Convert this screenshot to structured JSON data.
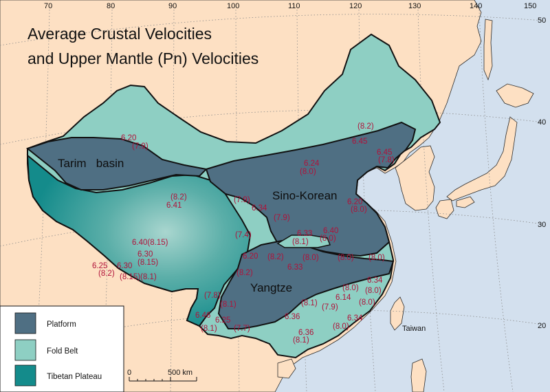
{
  "title": {
    "line1": "Average Crustal Velocities",
    "line2": "and Upper Mantle (Pn) Velocities"
  },
  "longitude_ticks": [
    "70",
    "80",
    "90",
    "100",
    "110",
    "120",
    "130",
    "140",
    "150"
  ],
  "latitude_ticks": [
    "50",
    "40",
    "30",
    "20"
  ],
  "regions": {
    "tarim": "Tarim   basin",
    "sino_korean": "Sino-Korean",
    "yangtze": "Yangtze"
  },
  "place_labels": {
    "taiwan": "Taiwan"
  },
  "legend": {
    "items": [
      {
        "label": "Platform",
        "color": "#4f6f83"
      },
      {
        "label": "Fold Belt",
        "color": "#8ecfc3"
      },
      {
        "label": "Tibetan Plateau",
        "color": "#148b8b"
      }
    ],
    "scale": {
      "start": "0",
      "end": "500 km"
    }
  },
  "colors": {
    "ocean": "#d3e0ee",
    "land": "#fde0c3",
    "platform": "#4f6f83",
    "fold_belt": "#8ecfc3",
    "tibetan_plateau": "#148b8b",
    "value_text": "#b0123a"
  },
  "velocity_labels": [
    "6.20",
    "(7.9)",
    "(8.2)",
    "6.45",
    "6.45",
    "(7.8)",
    "6.24",
    "(8.0)",
    "(8.2)",
    "6.41",
    "(7.9)",
    "6.34",
    "(7.9)",
    "6.20",
    "(8.0)",
    "6.33",
    "(8.1)",
    "6.40",
    "(8.0)",
    "(7.4)",
    "6.40(8.15)",
    "6.30",
    "(8.15)",
    "6.25",
    "6.30",
    "(8.2)",
    "(8.15)(8.1)",
    "6.20",
    "(8.2)",
    "6.33",
    "(8.2)",
    "(8.0)",
    "(8.0)",
    "(8.0)",
    "(8.0)",
    "6.34",
    "(8.0)",
    "(7.8)",
    "6.14",
    "(8.1)",
    "(7.9)",
    "(8.0)",
    "(8.1)",
    "6.46",
    "6.25",
    "6.36",
    "6.34",
    "(8.1)",
    "(7.7)",
    "(8.0)",
    "6.36",
    "(8.1)"
  ]
}
